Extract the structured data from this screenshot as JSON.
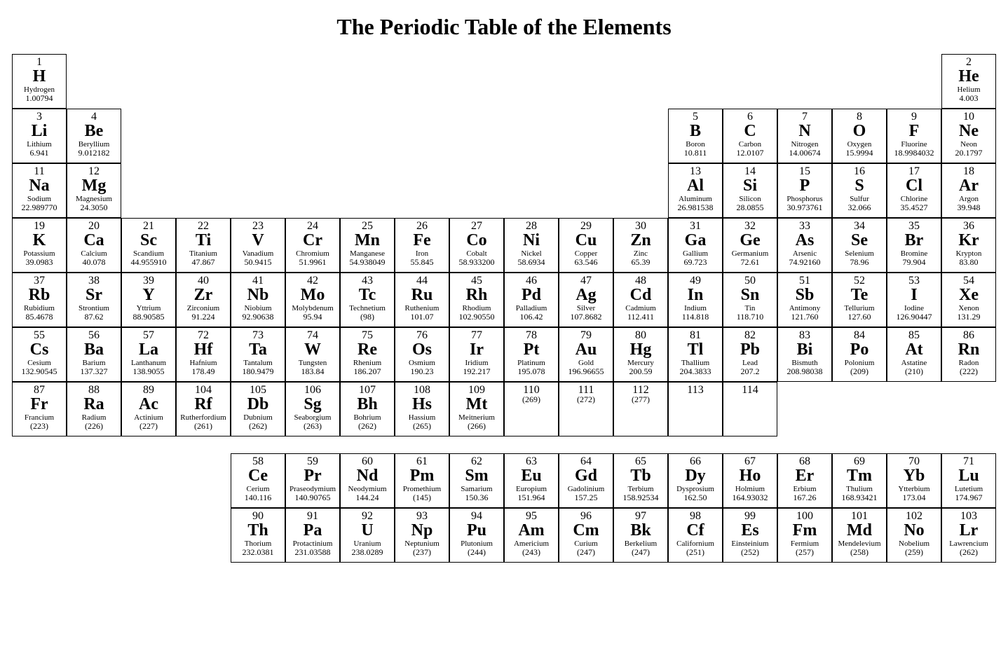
{
  "title": "The Periodic Table of the Elements",
  "rows": [
    [
      {
        "n": "1",
        "s": "H",
        "name": "Hydrogen",
        "m": "1.00794"
      },
      null,
      null,
      null,
      null,
      null,
      null,
      null,
      null,
      null,
      null,
      null,
      null,
      null,
      null,
      null,
      null,
      {
        "n": "2",
        "s": "He",
        "name": "Helium",
        "m": "4.003"
      }
    ],
    [
      {
        "n": "3",
        "s": "Li",
        "name": "Lithium",
        "m": "6.941"
      },
      {
        "n": "4",
        "s": "Be",
        "name": "Beryllium",
        "m": "9.012182"
      },
      null,
      null,
      null,
      null,
      null,
      null,
      null,
      null,
      null,
      null,
      {
        "n": "5",
        "s": "B",
        "name": "Boron",
        "m": "10.811"
      },
      {
        "n": "6",
        "s": "C",
        "name": "Carbon",
        "m": "12.0107"
      },
      {
        "n": "7",
        "s": "N",
        "name": "Nitrogen",
        "m": "14.00674"
      },
      {
        "n": "8",
        "s": "O",
        "name": "Oxygen",
        "m": "15.9994"
      },
      {
        "n": "9",
        "s": "F",
        "name": "Fluorine",
        "m": "18.9984032"
      },
      {
        "n": "10",
        "s": "Ne",
        "name": "Neon",
        "m": "20.1797"
      }
    ],
    [
      {
        "n": "11",
        "s": "Na",
        "name": "Sodium",
        "m": "22.989770"
      },
      {
        "n": "12",
        "s": "Mg",
        "name": "Magnesium",
        "m": "24.3050"
      },
      null,
      null,
      null,
      null,
      null,
      null,
      null,
      null,
      null,
      null,
      {
        "n": "13",
        "s": "Al",
        "name": "Aluminum",
        "m": "26.981538"
      },
      {
        "n": "14",
        "s": "Si",
        "name": "Silicon",
        "m": "28.0855"
      },
      {
        "n": "15",
        "s": "P",
        "name": "Phosphorus",
        "m": "30.973761"
      },
      {
        "n": "16",
        "s": "S",
        "name": "Sulfur",
        "m": "32.066"
      },
      {
        "n": "17",
        "s": "Cl",
        "name": "Chlorine",
        "m": "35.4527"
      },
      {
        "n": "18",
        "s": "Ar",
        "name": "Argon",
        "m": "39.948"
      }
    ],
    [
      {
        "n": "19",
        "s": "K",
        "name": "Potassium",
        "m": "39.0983"
      },
      {
        "n": "20",
        "s": "Ca",
        "name": "Calcium",
        "m": "40.078"
      },
      {
        "n": "21",
        "s": "Sc",
        "name": "Scandium",
        "m": "44.955910"
      },
      {
        "n": "22",
        "s": "Ti",
        "name": "Titanium",
        "m": "47.867"
      },
      {
        "n": "23",
        "s": "V",
        "name": "Vanadium",
        "m": "50.9415"
      },
      {
        "n": "24",
        "s": "Cr",
        "name": "Chromium",
        "m": "51.9961"
      },
      {
        "n": "25",
        "s": "Mn",
        "name": "Manganese",
        "m": "54.938049"
      },
      {
        "n": "26",
        "s": "Fe",
        "name": "Iron",
        "m": "55.845"
      },
      {
        "n": "27",
        "s": "Co",
        "name": "Cobalt",
        "m": "58.933200"
      },
      {
        "n": "28",
        "s": "Ni",
        "name": "Nickel",
        "m": "58.6934"
      },
      {
        "n": "29",
        "s": "Cu",
        "name": "Copper",
        "m": "63.546"
      },
      {
        "n": "30",
        "s": "Zn",
        "name": "Zinc",
        "m": "65.39"
      },
      {
        "n": "31",
        "s": "Ga",
        "name": "Gallium",
        "m": "69.723"
      },
      {
        "n": "32",
        "s": "Ge",
        "name": "Germanium",
        "m": "72.61"
      },
      {
        "n": "33",
        "s": "As",
        "name": "Arsenic",
        "m": "74.92160"
      },
      {
        "n": "34",
        "s": "Se",
        "name": "Selenium",
        "m": "78.96"
      },
      {
        "n": "35",
        "s": "Br",
        "name": "Bromine",
        "m": "79.904"
      },
      {
        "n": "36",
        "s": "Kr",
        "name": "Krypton",
        "m": "83.80"
      }
    ],
    [
      {
        "n": "37",
        "s": "Rb",
        "name": "Rubidium",
        "m": "85.4678"
      },
      {
        "n": "38",
        "s": "Sr",
        "name": "Strontium",
        "m": "87.62"
      },
      {
        "n": "39",
        "s": "Y",
        "name": "Yttrium",
        "m": "88.90585"
      },
      {
        "n": "40",
        "s": "Zr",
        "name": "Zirconium",
        "m": "91.224"
      },
      {
        "n": "41",
        "s": "Nb",
        "name": "Niobium",
        "m": "92.90638"
      },
      {
        "n": "42",
        "s": "Mo",
        "name": "Molybdenum",
        "m": "95.94"
      },
      {
        "n": "43",
        "s": "Tc",
        "name": "Technetium",
        "m": "(98)"
      },
      {
        "n": "44",
        "s": "Ru",
        "name": "Ruthenium",
        "m": "101.07"
      },
      {
        "n": "45",
        "s": "Rh",
        "name": "Rhodium",
        "m": "102.90550"
      },
      {
        "n": "46",
        "s": "Pd",
        "name": "Palladium",
        "m": "106.42"
      },
      {
        "n": "47",
        "s": "Ag",
        "name": "Silver",
        "m": "107.8682"
      },
      {
        "n": "48",
        "s": "Cd",
        "name": "Cadmium",
        "m": "112.411"
      },
      {
        "n": "49",
        "s": "In",
        "name": "Indium",
        "m": "114.818"
      },
      {
        "n": "50",
        "s": "Sn",
        "name": "Tin",
        "m": "118.710"
      },
      {
        "n": "51",
        "s": "Sb",
        "name": "Antimony",
        "m": "121.760"
      },
      {
        "n": "52",
        "s": "Te",
        "name": "Tellurium",
        "m": "127.60"
      },
      {
        "n": "53",
        "s": "I",
        "name": "Iodine",
        "m": "126.90447"
      },
      {
        "n": "54",
        "s": "Xe",
        "name": "Xenon",
        "m": "131.29"
      }
    ],
    [
      {
        "n": "55",
        "s": "Cs",
        "name": "Cesium",
        "m": "132.90545"
      },
      {
        "n": "56",
        "s": "Ba",
        "name": "Barium",
        "m": "137.327"
      },
      {
        "n": "57",
        "s": "La",
        "name": "Lanthanum",
        "m": "138.9055"
      },
      {
        "n": "72",
        "s": "Hf",
        "name": "Hafnium",
        "m": "178.49"
      },
      {
        "n": "73",
        "s": "Ta",
        "name": "Tantalum",
        "m": "180.9479"
      },
      {
        "n": "74",
        "s": "W",
        "name": "Tungsten",
        "m": "183.84"
      },
      {
        "n": "75",
        "s": "Re",
        "name": "Rhenium",
        "m": "186.207"
      },
      {
        "n": "76",
        "s": "Os",
        "name": "Osmium",
        "m": "190.23"
      },
      {
        "n": "77",
        "s": "Ir",
        "name": "Iridium",
        "m": "192.217"
      },
      {
        "n": "78",
        "s": "Pt",
        "name": "Platinum",
        "m": "195.078"
      },
      {
        "n": "79",
        "s": "Au",
        "name": "Gold",
        "m": "196.96655"
      },
      {
        "n": "80",
        "s": "Hg",
        "name": "Mercury",
        "m": "200.59"
      },
      {
        "n": "81",
        "s": "Tl",
        "name": "Thallium",
        "m": "204.3833"
      },
      {
        "n": "82",
        "s": "Pb",
        "name": "Lead",
        "m": "207.2"
      },
      {
        "n": "83",
        "s": "Bi",
        "name": "Bismuth",
        "m": "208.98038"
      },
      {
        "n": "84",
        "s": "Po",
        "name": "Polonium",
        "m": "(209)"
      },
      {
        "n": "85",
        "s": "At",
        "name": "Astatine",
        "m": "(210)"
      },
      {
        "n": "86",
        "s": "Rn",
        "name": "Radon",
        "m": "(222)"
      }
    ],
    [
      {
        "n": "87",
        "s": "Fr",
        "name": "Francium",
        "m": "(223)"
      },
      {
        "n": "88",
        "s": "Ra",
        "name": "Radium",
        "m": "(226)"
      },
      {
        "n": "89",
        "s": "Ac",
        "name": "Actinium",
        "m": "(227)"
      },
      {
        "n": "104",
        "s": "Rf",
        "name": "Rutherfordium",
        "m": "(261)"
      },
      {
        "n": "105",
        "s": "Db",
        "name": "Dubnium",
        "m": "(262)"
      },
      {
        "n": "106",
        "s": "Sg",
        "name": "Seaborgium",
        "m": "(263)"
      },
      {
        "n": "107",
        "s": "Bh",
        "name": "Bohrium",
        "m": "(262)"
      },
      {
        "n": "108",
        "s": "Hs",
        "name": "Hassium",
        "m": "(265)"
      },
      {
        "n": "109",
        "s": "Mt",
        "name": "Meitnerium",
        "m": "(266)"
      },
      {
        "n": "110",
        "s": "",
        "name": "",
        "m": "(269)"
      },
      {
        "n": "111",
        "s": "",
        "name": "",
        "m": "(272)"
      },
      {
        "n": "112",
        "s": "",
        "name": "",
        "m": "(277)"
      },
      {
        "n": "113",
        "s": "",
        "name": "",
        "m": ""
      },
      {
        "n": "114",
        "s": "",
        "name": "",
        "m": ""
      },
      null,
      null,
      null,
      null
    ]
  ],
  "fblock": [
    [
      null,
      null,
      null,
      null,
      {
        "n": "58",
        "s": "Ce",
        "name": "Cerium",
        "m": "140.116"
      },
      {
        "n": "59",
        "s": "Pr",
        "name": "Praseodymium",
        "m": "140.90765"
      },
      {
        "n": "60",
        "s": "Nd",
        "name": "Neodymium",
        "m": "144.24"
      },
      {
        "n": "61",
        "s": "Pm",
        "name": "Promethium",
        "m": "(145)"
      },
      {
        "n": "62",
        "s": "Sm",
        "name": "Samarium",
        "m": "150.36"
      },
      {
        "n": "63",
        "s": "Eu",
        "name": "Europium",
        "m": "151.964"
      },
      {
        "n": "64",
        "s": "Gd",
        "name": "Gadolinium",
        "m": "157.25"
      },
      {
        "n": "65",
        "s": "Tb",
        "name": "Terbium",
        "m": "158.92534"
      },
      {
        "n": "66",
        "s": "Dy",
        "name": "Dysprosium",
        "m": "162.50"
      },
      {
        "n": "67",
        "s": "Ho",
        "name": "Holmium",
        "m": "164.93032"
      },
      {
        "n": "68",
        "s": "Er",
        "name": "Erbium",
        "m": "167.26"
      },
      {
        "n": "69",
        "s": "Tm",
        "name": "Thulium",
        "m": "168.93421"
      },
      {
        "n": "70",
        "s": "Yb",
        "name": "Ytterbium",
        "m": "173.04"
      },
      {
        "n": "71",
        "s": "Lu",
        "name": "Lutetium",
        "m": "174.967"
      }
    ],
    [
      null,
      null,
      null,
      null,
      {
        "n": "90",
        "s": "Th",
        "name": "Thorium",
        "m": "232.0381"
      },
      {
        "n": "91",
        "s": "Pa",
        "name": "Protactinium",
        "m": "231.03588"
      },
      {
        "n": "92",
        "s": "U",
        "name": "Uranium",
        "m": "238.0289"
      },
      {
        "n": "93",
        "s": "Np",
        "name": "Neptunium",
        "m": "(237)"
      },
      {
        "n": "94",
        "s": "Pu",
        "name": "Plutonium",
        "m": "(244)"
      },
      {
        "n": "95",
        "s": "Am",
        "name": "Americium",
        "m": "(243)"
      },
      {
        "n": "96",
        "s": "Cm",
        "name": "Curium",
        "m": "(247)"
      },
      {
        "n": "97",
        "s": "Bk",
        "name": "Berkelium",
        "m": "(247)"
      },
      {
        "n": "98",
        "s": "Cf",
        "name": "Californium",
        "m": "(251)"
      },
      {
        "n": "99",
        "s": "Es",
        "name": "Einsteinium",
        "m": "(252)"
      },
      {
        "n": "100",
        "s": "Fm",
        "name": "Fermium",
        "m": "(257)"
      },
      {
        "n": "101",
        "s": "Md",
        "name": "Mendelevium",
        "m": "(258)"
      },
      {
        "n": "102",
        "s": "No",
        "name": "Nobelium",
        "m": "(259)"
      },
      {
        "n": "103",
        "s": "Lr",
        "name": "Lawrencium",
        "m": "(262)"
      }
    ]
  ]
}
